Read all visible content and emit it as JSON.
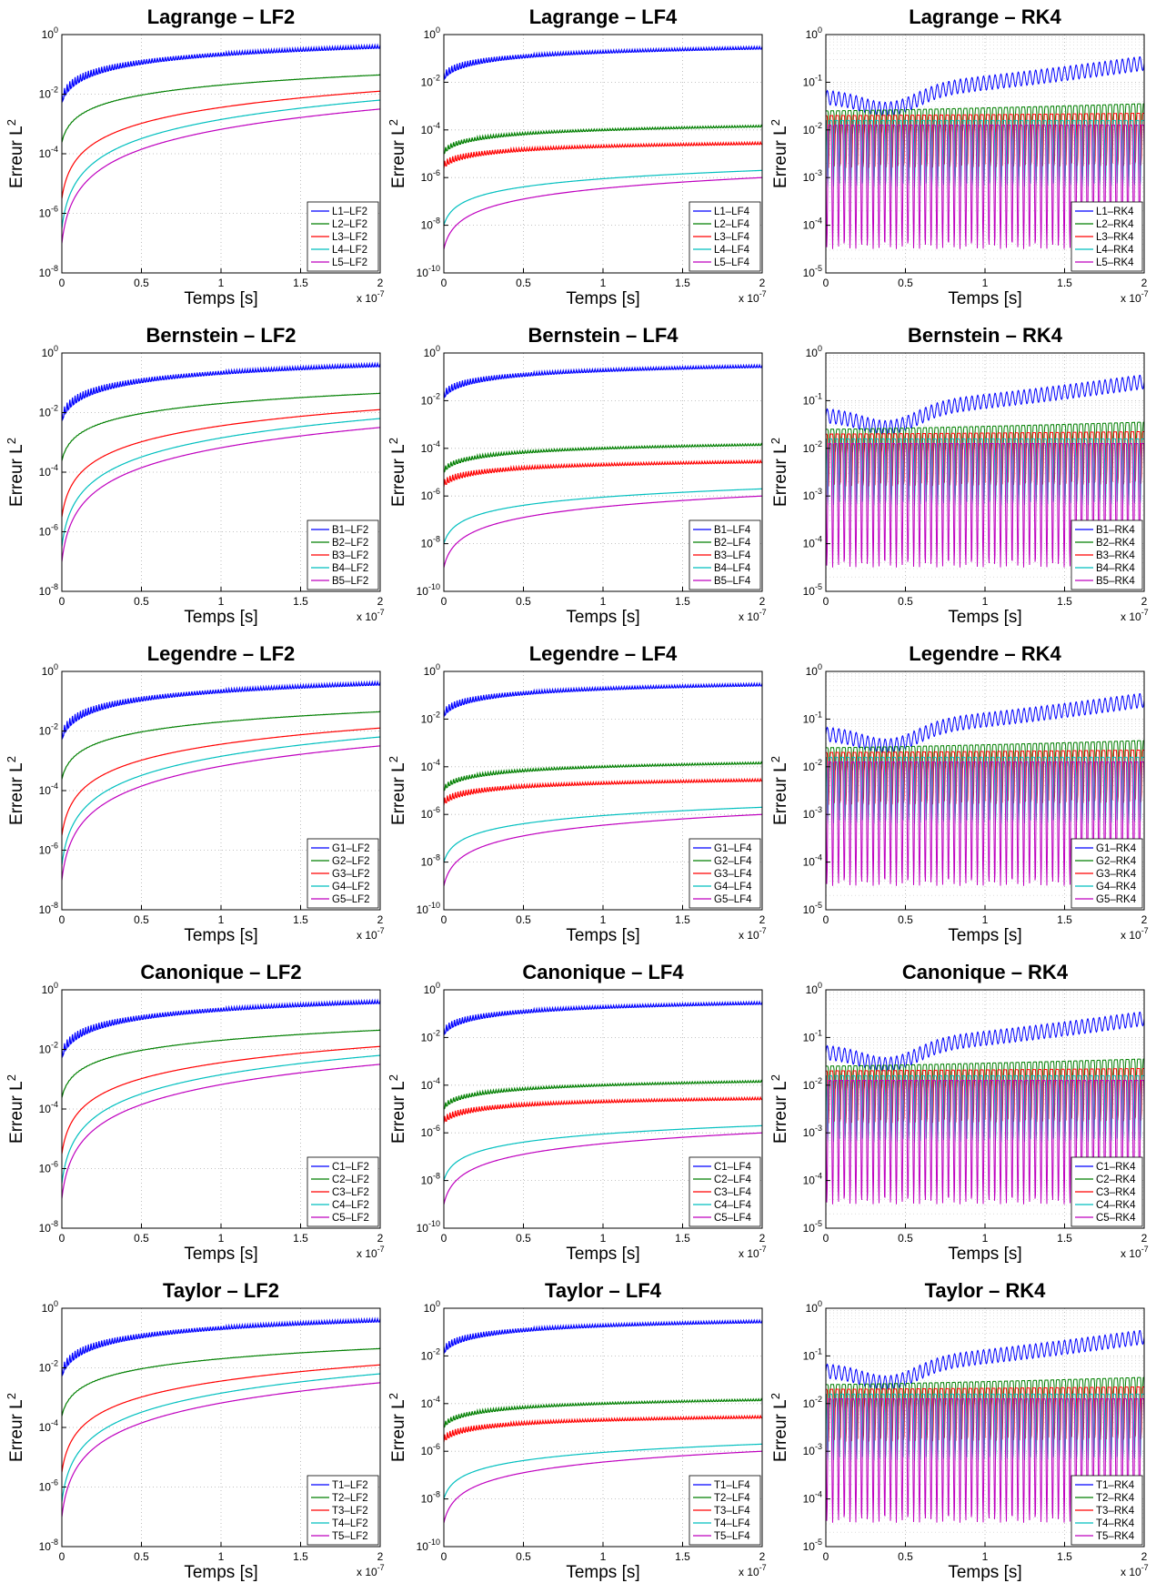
{
  "chart_data": {
    "type": "line",
    "x_scale_label": "x 10",
    "x_scale_exponent": "-7",
    "xlabel": "Temps [s]",
    "ylabel": "Erreur L",
    "ylabel_sup": "2",
    "x_ticks": [
      "0",
      "0.5",
      "1",
      "1.5",
      "2"
    ],
    "xlim": [
      0,
      2e-07
    ],
    "log_y": true,
    "grid": true,
    "legend_position": "bottom-right",
    "colors": [
      "#0000ff",
      "#007f00",
      "#ff0000",
      "#00bfbf",
      "#bf00bf"
    ],
    "rows": [
      {
        "family": "Lagrange",
        "prefix": "L"
      },
      {
        "family": "Bernstein",
        "prefix": "B"
      },
      {
        "family": "Legendre",
        "prefix": "G"
      },
      {
        "family": "Canonique",
        "prefix": "C"
      },
      {
        "family": "Taylor",
        "prefix": "T"
      }
    ],
    "columns": [
      {
        "scheme": "LF2",
        "ylim_exp": [
          -8,
          0
        ],
        "series": [
          {
            "start": -2.0,
            "end": -0.35,
            "osc": 0.35
          },
          {
            "start": -3.6,
            "end": -1.35,
            "osc": 0.02
          },
          {
            "start": -5.5,
            "end": -1.9,
            "osc": 0
          },
          {
            "start": -6.5,
            "end": -2.2,
            "osc": 0
          },
          {
            "start": -7.0,
            "end": -2.5,
            "osc": 0
          }
        ]
      },
      {
        "scheme": "LF4",
        "ylim_exp": [
          -10,
          0
        ],
        "series": [
          {
            "start": -1.6,
            "end": -0.5,
            "osc": 0.35
          },
          {
            "start": -4.8,
            "end": -3.8,
            "osc": 0.25
          },
          {
            "start": -5.3,
            "end": -4.5,
            "osc": 0.35
          },
          {
            "start": -8.0,
            "end": -5.7,
            "osc": 0
          },
          {
            "start": -9.0,
            "end": -6.0,
            "osc": 0
          }
        ]
      },
      {
        "scheme": "RK4",
        "ylim_exp": [
          -5,
          0
        ],
        "series": [
          {
            "start": -1.3,
            "end": -0.6,
            "osc": 0.15
          },
          {
            "start": -1.6,
            "end": -1.45,
            "osc": 0.5
          },
          {
            "start": -1.7,
            "end": -1.65,
            "osc": 1.1
          },
          {
            "start": -1.8,
            "end": -1.8,
            "osc": 1.4
          },
          {
            "start": -1.9,
            "end": -1.9,
            "osc": 2.6
          }
        ]
      }
    ],
    "panels": [
      {
        "title": "Lagrange – LF2",
        "legend": [
          "L1–LF2",
          "L2–LF2",
          "L3–LF2",
          "L4–LF2",
          "L5–LF2"
        ]
      },
      {
        "title": "Lagrange – LF4",
        "legend": [
          "L1–LF4",
          "L2–LF4",
          "L3–LF4",
          "L4–LF4",
          "L5–LF4"
        ]
      },
      {
        "title": "Lagrange – RK4",
        "legend": [
          "L1–RK4",
          "L2–RK4",
          "L3–RK4",
          "L4–RK4",
          "L5–RK4"
        ]
      },
      {
        "title": "Bernstein – LF2",
        "legend": [
          "B1–LF2",
          "B2–LF2",
          "B3–LF2",
          "B4–LF2",
          "B5–LF2"
        ]
      },
      {
        "title": "Bernstein – LF4",
        "legend": [
          "B1–LF4",
          "B2–LF4",
          "B3–LF4",
          "B4–LF4",
          "B5–LF4"
        ]
      },
      {
        "title": "Bernstein – RK4",
        "legend": [
          "B1–RK4",
          "B2–RK4",
          "B3–RK4",
          "B4–RK4",
          "B5–RK4"
        ]
      },
      {
        "title": "Legendre – LF2",
        "legend": [
          "G1–LF2",
          "G2–LF2",
          "G3–LF2",
          "G4–LF2",
          "G5–LF2"
        ]
      },
      {
        "title": "Legendre – LF4",
        "legend": [
          "G1–LF4",
          "G2–LF4",
          "G3–LF4",
          "G4–LF4",
          "G5–LF4"
        ]
      },
      {
        "title": "Legendre – RK4",
        "legend": [
          "G1–RK4",
          "G2–RK4",
          "G3–RK4",
          "G4–RK4",
          "G5–RK4"
        ]
      },
      {
        "title": "Canonique – LF2",
        "legend": [
          "C1–LF2",
          "C2–LF2",
          "C3–LF2",
          "C4–LF2",
          "C5–LF2"
        ]
      },
      {
        "title": "Canonique – LF4",
        "legend": [
          "C1–LF4",
          "C2–LF4",
          "C3–LF4",
          "C4–LF4",
          "C5–LF4"
        ]
      },
      {
        "title": "Canonique – RK4",
        "legend": [
          "C1–RK4",
          "C2–RK4",
          "C3–RK4",
          "C4–RK4",
          "C5–RK4"
        ]
      },
      {
        "title": "Taylor – LF2",
        "legend": [
          "T1–LF2",
          "T2–LF2",
          "T3–LF2",
          "T4–LF2",
          "T5–LF2"
        ]
      },
      {
        "title": "Taylor – LF4",
        "legend": [
          "T1–LF4",
          "T2–LF4",
          "T3–LF4",
          "T4–LF4",
          "T5–LF4"
        ]
      },
      {
        "title": "Taylor – RK4",
        "legend": [
          "T1–RK4",
          "T2–RK4",
          "T3–RK4",
          "T4–RK4",
          "T5–RK4"
        ]
      }
    ]
  }
}
